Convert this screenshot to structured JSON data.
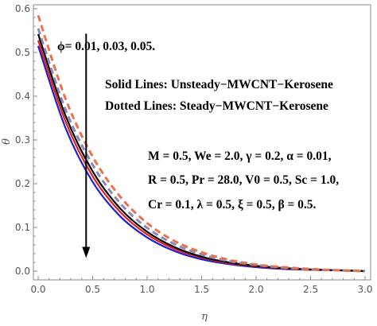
{
  "chart_data": {
    "type": "line",
    "xlabel": "η",
    "ylabel": "θ",
    "xlim": [
      0,
      3.0
    ],
    "ylim": [
      0,
      0.6
    ],
    "x_ticks": [
      "0.0",
      "0.5",
      "1.0",
      "1.5",
      "2.0",
      "2.5",
      "3.0"
    ],
    "y_ticks": [
      "0.0",
      "0.1",
      "0.2",
      "0.3",
      "0.4",
      "0.5",
      "0.6"
    ],
    "grid": false,
    "annotations": {
      "phi": "ϕ= 0.01, 0.03, 0.05.",
      "solid": "Solid Lines: Unsteady−MWCNT−Kerosene",
      "dotted": "Dotted Lines: Steady−MWCNT−Kerosene",
      "params": [
        "M = 0.5, We = 2.0, γ = 0.2, α = 0.01,",
        "R = 0.5, Pr = 28.0, V0 = 0.5, Sc = 1.0,",
        "Cr = 0.1, λ = 0.5, ξ = 0.5, β = 0.5."
      ]
    },
    "arrow": {
      "x": 0.44,
      "y_start": 0.543,
      "y_end": 0.03,
      "direction": "down"
    },
    "x": [
      0,
      0.25,
      0.5,
      0.75,
      1.0,
      1.25,
      1.5,
      1.75,
      2.0,
      2.25,
      2.5,
      2.75,
      3.0
    ],
    "series": [
      {
        "style": "solid",
        "color": "#1f1fcf",
        "values": [
          0.515,
          0.328,
          0.204,
          0.126,
          0.077,
          0.046,
          0.027,
          0.016,
          0.009,
          0.005,
          0.003,
          0.002,
          0.0
        ]
      },
      {
        "style": "solid",
        "color": "#e02020",
        "values": [
          0.528,
          0.343,
          0.217,
          0.136,
          0.084,
          0.051,
          0.031,
          0.018,
          0.011,
          0.006,
          0.003,
          0.002,
          0.0
        ]
      },
      {
        "style": "solid",
        "color": "#000000",
        "values": [
          0.542,
          0.356,
          0.228,
          0.144,
          0.09,
          0.055,
          0.033,
          0.02,
          0.012,
          0.007,
          0.004,
          0.002,
          0.0
        ]
      },
      {
        "style": "dashed",
        "color": "#8888bb",
        "values": [
          0.555,
          0.37,
          0.243,
          0.156,
          0.099,
          0.062,
          0.038,
          0.023,
          0.014,
          0.008,
          0.004,
          0.002,
          0.0
        ]
      },
      {
        "style": "dashed",
        "color": "#e8734a",
        "values": [
          0.585,
          0.395,
          0.262,
          0.171,
          0.11,
          0.069,
          0.043,
          0.026,
          0.015,
          0.009,
          0.005,
          0.002,
          0.0
        ]
      }
    ]
  }
}
